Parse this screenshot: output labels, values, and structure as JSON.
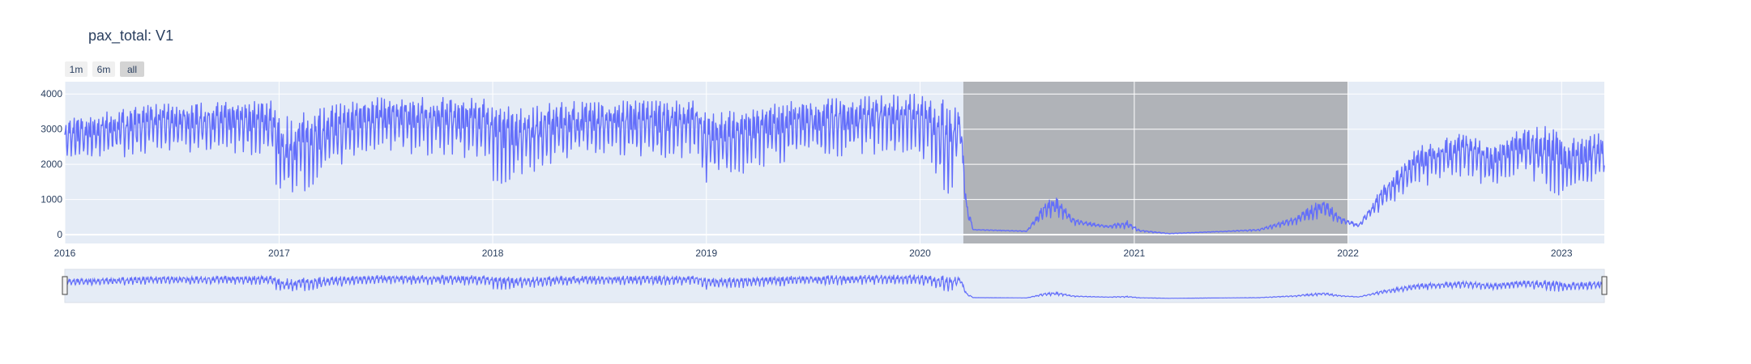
{
  "chart_data": {
    "type": "line",
    "title": "pax_total: V1",
    "xlabel": "",
    "ylabel": "",
    "x_range": [
      "2016-01-01",
      "2023-03-15"
    ],
    "ylim": [
      -250,
      4350
    ],
    "x_ticks": [
      "2016",
      "2017",
      "2018",
      "2019",
      "2020",
      "2021",
      "2022",
      "2023"
    ],
    "y_ticks": [
      0,
      1000,
      2000,
      3000,
      4000
    ],
    "grid": true,
    "legend": "none",
    "range_selector": [
      {
        "label": "1m",
        "active": false
      },
      {
        "label": "6m",
        "active": false
      },
      {
        "label": "all",
        "active": true
      }
    ],
    "shaded_region": {
      "start": "2020-03-15",
      "end": "2022-01-01",
      "color": "#b0b3b8"
    },
    "series": [
      {
        "color": "#636efa",
        "envelope": [
          {
            "date": "2016-01-01",
            "low": 1900,
            "high": 3300
          },
          {
            "date": "2016-06-01",
            "low": 2300,
            "high": 3700
          },
          {
            "date": "2016-12-20",
            "low": 2200,
            "high": 3800
          },
          {
            "date": "2017-01-01",
            "low": 650,
            "high": 3300
          },
          {
            "date": "2017-06-01",
            "low": 2300,
            "high": 3900
          },
          {
            "date": "2017-12-20",
            "low": 2100,
            "high": 3900
          },
          {
            "date": "2018-01-01",
            "low": 1300,
            "high": 3600
          },
          {
            "date": "2018-06-01",
            "low": 2200,
            "high": 3800
          },
          {
            "date": "2018-12-20",
            "low": 2100,
            "high": 3800
          },
          {
            "date": "2019-01-01",
            "low": 1400,
            "high": 3400
          },
          {
            "date": "2019-06-01",
            "low": 2100,
            "high": 3800
          },
          {
            "date": "2019-12-20",
            "low": 2300,
            "high": 4000
          },
          {
            "date": "2020-01-10",
            "low": 2000,
            "high": 3900
          },
          {
            "date": "2020-02-20",
            "low": 800,
            "high": 3800
          },
          {
            "date": "2020-03-10",
            "low": 2400,
            "high": 3500
          },
          {
            "date": "2020-03-20",
            "low": 400,
            "high": 1000
          },
          {
            "date": "2020-04-01",
            "low": 130,
            "high": 150
          },
          {
            "date": "2020-07-01",
            "low": 80,
            "high": 110
          },
          {
            "date": "2020-08-01",
            "low": 400,
            "high": 900
          },
          {
            "date": "2020-08-20",
            "low": 500,
            "high": 1100
          },
          {
            "date": "2020-09-20",
            "low": 250,
            "high": 450
          },
          {
            "date": "2020-11-15",
            "low": 180,
            "high": 260
          },
          {
            "date": "2020-12-20",
            "low": 150,
            "high": 400
          },
          {
            "date": "2021-01-10",
            "low": 70,
            "high": 140
          },
          {
            "date": "2021-03-01",
            "low": 20,
            "high": 40
          },
          {
            "date": "2021-06-01",
            "low": 80,
            "high": 100
          },
          {
            "date": "2021-08-01",
            "low": 100,
            "high": 160
          },
          {
            "date": "2021-10-01",
            "low": 250,
            "high": 500
          },
          {
            "date": "2021-11-20",
            "low": 450,
            "high": 1050
          },
          {
            "date": "2021-12-20",
            "low": 300,
            "high": 500
          },
          {
            "date": "2022-01-20",
            "low": 200,
            "high": 300
          },
          {
            "date": "2022-03-01",
            "low": 700,
            "high": 1400
          },
          {
            "date": "2022-05-01",
            "low": 1300,
            "high": 2500
          },
          {
            "date": "2022-07-20",
            "low": 1600,
            "high": 2900
          },
          {
            "date": "2022-09-01",
            "low": 1300,
            "high": 2500
          },
          {
            "date": "2022-10-20",
            "low": 1700,
            "high": 3000
          },
          {
            "date": "2022-12-20",
            "low": 1100,
            "high": 3100
          },
          {
            "date": "2023-01-10",
            "low": 1000,
            "high": 2700
          },
          {
            "date": "2023-03-15",
            "low": 1500,
            "high": 2900
          }
        ]
      }
    ]
  }
}
